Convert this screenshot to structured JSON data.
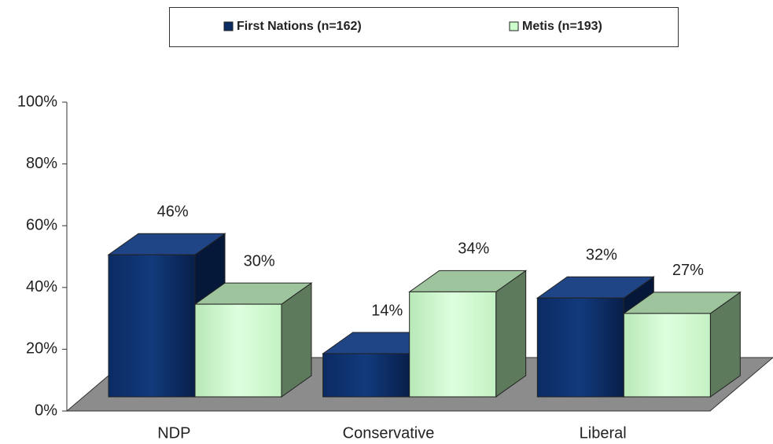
{
  "chart_data": {
    "type": "bar3d",
    "categories": [
      "NDP",
      "Conservative",
      "Liberal"
    ],
    "series": [
      {
        "name": "First Nations (n=162)",
        "color": "#0b2b63",
        "values": [
          46,
          14,
          32
        ],
        "value_labels": [
          "46%",
          "14%",
          "32%"
        ]
      },
      {
        "name": "Metis (n=193)",
        "color": "#ccffcc",
        "values": [
          30,
          34,
          27
        ],
        "value_labels": [
          "30%",
          "34%",
          "27%"
        ]
      }
    ],
    "ylim": [
      0,
      100
    ],
    "yticks": [
      {
        "value": 0,
        "label": "0%"
      },
      {
        "value": 20,
        "label": "20%"
      },
      {
        "value": 40,
        "label": "40%"
      },
      {
        "value": 60,
        "label": "60%"
      },
      {
        "value": 80,
        "label": "80%"
      },
      {
        "value": 100,
        "label": "100%"
      }
    ],
    "legend": "top"
  }
}
